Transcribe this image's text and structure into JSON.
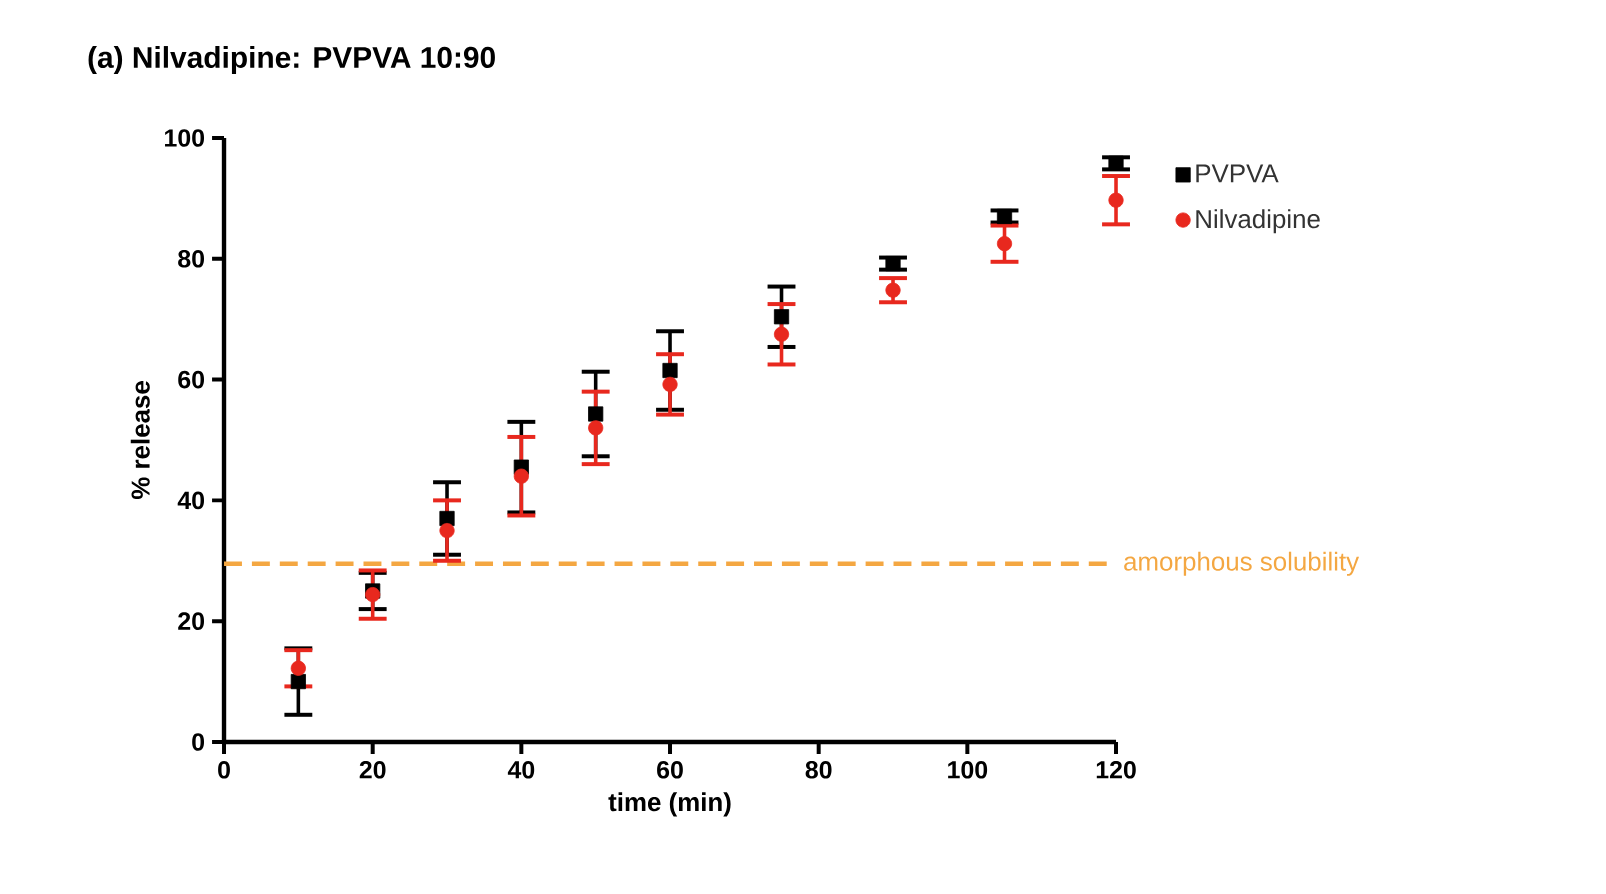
{
  "chart_data": {
    "type": "scatter",
    "title": "(a) Nilvadipine: PVPVA 10:90",
    "xlabel": "time (min)",
    "ylabel": "% release",
    "x": [
      10,
      20,
      30,
      40,
      50,
      60,
      75,
      90,
      105,
      120
    ],
    "series": [
      {
        "name": "Nilvadipine",
        "color": "#e8281e",
        "marker": "circle",
        "values": [
          12.2,
          24.4,
          35,
          44,
          52,
          59.2,
          67.5,
          74.8,
          82.5,
          89.7
        ],
        "errors": [
          3,
          4,
          5,
          6.5,
          6,
          5,
          5,
          2,
          3,
          4
        ]
      },
      {
        "name": "PVPVA",
        "color": "#000000",
        "marker": "square",
        "values": [
          10,
          25,
          37,
          45.5,
          54.3,
          61.5,
          70.4,
          79.2,
          87,
          95.8
        ],
        "errors": [
          5.5,
          3,
          6,
          7.5,
          7,
          6.5,
          5,
          1,
          1,
          1
        ]
      }
    ],
    "xlim": [
      0,
      120
    ],
    "xticks": [
      0,
      20,
      40,
      60,
      80,
      100,
      120
    ],
    "ylim": [
      0,
      100
    ],
    "yticks": [
      0,
      20,
      40,
      60,
      80,
      100
    ],
    "ref_lines": [
      {
        "axis": "y",
        "value": 29.5,
        "label": "amorphous solubility",
        "color": "#f4a742",
        "line_style": "dashed"
      }
    ],
    "legend": "top right",
    "grid": false
  }
}
